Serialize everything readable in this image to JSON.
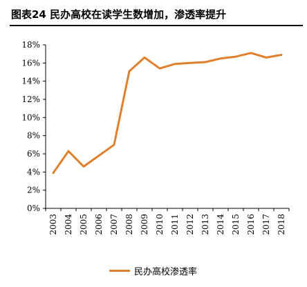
{
  "chart_data": {
    "type": "line",
    "title": "图表24 民办高校在读学生数增加，渗透率提升",
    "categories": [
      "2003",
      "2004",
      "2005",
      "2006",
      "2007",
      "2008",
      "2009",
      "2010",
      "2011",
      "2012",
      "2013",
      "2014",
      "2015",
      "2016",
      "2017",
      "2018"
    ],
    "series": [
      {
        "name": "民办高校渗透率",
        "color": "#E07F2C",
        "values": [
          3.9,
          6.3,
          4.6,
          5.8,
          7.0,
          15.1,
          16.6,
          15.4,
          15.9,
          16.0,
          16.1,
          16.5,
          16.7,
          17.1,
          16.6,
          16.9
        ]
      }
    ],
    "ylim": [
      0,
      18
    ],
    "yticks": [
      0,
      2,
      4,
      6,
      8,
      10,
      12,
      14,
      16,
      18
    ],
    "ytick_suffix": "%",
    "xlabel": "",
    "ylabel": "",
    "grid": false,
    "legend_position": "bottom-center"
  }
}
